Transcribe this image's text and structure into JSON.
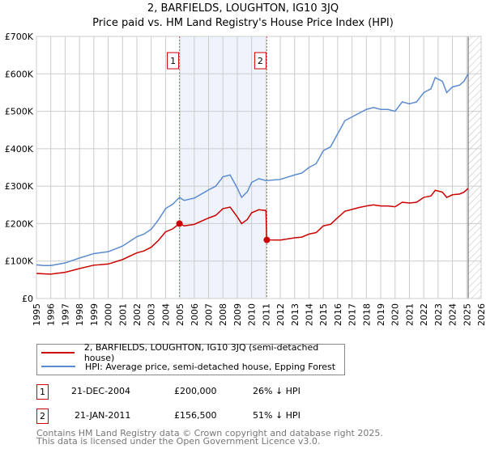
{
  "title": "2, BARFIELDS, LOUGHTON, IG10 3JQ",
  "subtitle": "Price paid vs. HM Land Registry's House Price Index (HPI)",
  "chart_data": {
    "type": "line",
    "ylabel": "",
    "xlabel": "",
    "xlim": [
      1995,
      2026
    ],
    "ylim": [
      0,
      700000
    ],
    "y_ticks": [
      {
        "v": 0,
        "label": "£0"
      },
      {
        "v": 100000,
        "label": "£100K"
      },
      {
        "v": 200000,
        "label": "£200K"
      },
      {
        "v": 300000,
        "label": "£300K"
      },
      {
        "v": 400000,
        "label": "£400K"
      },
      {
        "v": 500000,
        "label": "£500K"
      },
      {
        "v": 600000,
        "label": "£600K"
      },
      {
        "v": 700000,
        "label": "£700K"
      }
    ],
    "x_ticks": [
      "1995",
      "1996",
      "1997",
      "1998",
      "1999",
      "2000",
      "2001",
      "2002",
      "2003",
      "2004",
      "2005",
      "2006",
      "2007",
      "2008",
      "2009",
      "2010",
      "2011",
      "2012",
      "2013",
      "2014",
      "2015",
      "2016",
      "2017",
      "2018",
      "2019",
      "2020",
      "2021",
      "2022",
      "2023",
      "2024",
      "2025",
      "2026"
    ],
    "grid": true,
    "shaded_range": [
      2004.97,
      2011.06
    ],
    "future_hatch_from": 2025.1,
    "series": [
      {
        "name": "2, BARFIELDS, LOUGHTON, IG10 3JQ (semi-detached house)",
        "color": "#cc0000",
        "x": [
          1995,
          1995.5,
          1996,
          1997,
          1998,
          1999,
          2000,
          2001,
          2002,
          2002.5,
          2003,
          2003.5,
          2004,
          2004.5,
          2004.97,
          2005.3,
          2006,
          2007,
          2007.5,
          2008,
          2008.5,
          2009,
          2009.3,
          2009.7,
          2010,
          2010.5,
          2011,
          2011.05,
          2012,
          2013,
          2013.5,
          2014,
          2014.5,
          2015,
          2015.5,
          2016,
          2016.5,
          2017,
          2017.5,
          2018,
          2018.5,
          2019,
          2019.5,
          2020,
          2020.5,
          2021,
          2021.5,
          2022,
          2022.5,
          2022.8,
          2023.3,
          2023.6,
          2024,
          2024.5,
          2024.8,
          2025.1
        ],
        "y": [
          67000,
          66000,
          65000,
          70000,
          80000,
          89000,
          92000,
          104000,
          122000,
          127000,
          137000,
          155000,
          178000,
          186000,
          200000,
          194000,
          198000,
          215000,
          222000,
          240000,
          244000,
          218000,
          200000,
          211000,
          229000,
          237000,
          235000,
          156500,
          156000,
          162000,
          164000,
          172000,
          176000,
          194000,
          198000,
          216000,
          233000,
          238000,
          243000,
          247000,
          250000,
          247000,
          247000,
          245000,
          257000,
          255000,
          257000,
          270000,
          274000,
          289000,
          284000,
          270000,
          277000,
          279000,
          284000,
          294000
        ]
      },
      {
        "name": "HPI: Average price, semi-detached house, Epping Forest",
        "color": "#5b8bd0",
        "x": [
          1995,
          1995.5,
          1996,
          1997,
          1998,
          1999,
          2000,
          2001,
          2002,
          2002.5,
          2003,
          2003.5,
          2004,
          2004.5,
          2004.97,
          2005.3,
          2006,
          2007,
          2007.5,
          2008,
          2008.5,
          2009,
          2009.3,
          2009.7,
          2010,
          2010.5,
          2011,
          2012,
          2013,
          2013.5,
          2014,
          2014.5,
          2015,
          2015.5,
          2016,
          2016.5,
          2017,
          2017.5,
          2018,
          2018.5,
          2019,
          2019.5,
          2020,
          2020.5,
          2021,
          2021.5,
          2022,
          2022.5,
          2022.8,
          2023.3,
          2023.6,
          2024,
          2024.5,
          2024.8,
          2025.1
        ],
        "y": [
          90000,
          88000,
          88000,
          95000,
          108000,
          120000,
          125000,
          140000,
          165000,
          172000,
          185000,
          210000,
          240000,
          252000,
          270000,
          262000,
          268000,
          290000,
          300000,
          325000,
          330000,
          295000,
          270000,
          285000,
          310000,
          320000,
          315000,
          318000,
          330000,
          335000,
          350000,
          360000,
          395000,
          405000,
          440000,
          475000,
          485000,
          495000,
          505000,
          510000,
          505000,
          505000,
          500000,
          525000,
          520000,
          525000,
          550000,
          560000,
          590000,
          580000,
          550000,
          565000,
          570000,
          580000,
          600000
        ]
      }
    ],
    "markers": [
      {
        "label": "1",
        "x": 2004.97,
        "y": 200000
      },
      {
        "label": "2",
        "x": 2011.06,
        "y": 156500
      }
    ]
  },
  "legend": [
    "2, BARFIELDS, LOUGHTON, IG10 3JQ (semi-detached house)",
    "HPI: Average price, semi-detached house, Epping Forest"
  ],
  "transactions": [
    {
      "num": "1",
      "date": "21-DEC-2004",
      "price": "£200,000",
      "hpi": "26% ↓ HPI"
    },
    {
      "num": "2",
      "date": "21-JAN-2011",
      "price": "£156,500",
      "hpi": "51% ↓ HPI"
    }
  ],
  "footer": [
    "Contains HM Land Registry data © Crown copyright and database right 2025.",
    "This data is licensed under the Open Government Licence v3.0."
  ]
}
